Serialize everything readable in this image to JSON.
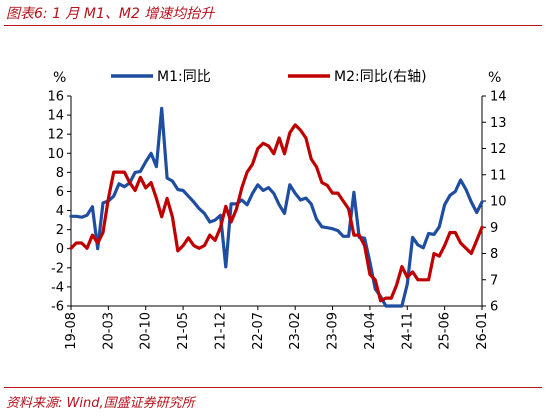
{
  "header": {
    "title": "图表6:  1 月 M1、M2 增速均抬升"
  },
  "footer": {
    "source": "资料来源:  Wind,国盛证券研究所"
  },
  "colors": {
    "m1": "#1f4ea1",
    "m2": "#c00000",
    "axis": "#000000",
    "header": "#b5121b"
  },
  "chart_data": {
    "type": "line",
    "title": "",
    "x_categories": [
      "19-08",
      "20-03",
      "20-10",
      "21-05",
      "21-12",
      "22-07",
      "23-02",
      "23-09",
      "24-04",
      "24-11",
      "25-06",
      "26-01"
    ],
    "x_range": [
      "19-08",
      "26-01"
    ],
    "y_left": {
      "unit_label": "%",
      "range": [
        -6,
        16
      ],
      "ticks": [
        "16",
        "14",
        "12",
        "10",
        "8",
        "6",
        "4",
        "2",
        "0",
        "-2",
        "-4",
        "-6"
      ]
    },
    "y_right": {
      "unit_label": "%",
      "range": [
        6,
        14
      ],
      "ticks": [
        "14",
        "13",
        "12",
        "11",
        "10",
        "9",
        "8",
        "7",
        "6"
      ]
    },
    "grid": false,
    "legend_position": "top",
    "series": [
      {
        "name": "M1:同比",
        "axis": "left",
        "color": "#1f4ea1",
        "points": [
          [
            "19-08",
            3.4
          ],
          [
            "19-09",
            3.4
          ],
          [
            "19-10",
            3.3
          ],
          [
            "19-11",
            3.5
          ],
          [
            "19-12",
            4.4
          ],
          [
            "20-01",
            0.0
          ],
          [
            "20-02",
            4.8
          ],
          [
            "20-03",
            5.0
          ],
          [
            "20-04",
            5.5
          ],
          [
            "20-05",
            6.8
          ],
          [
            "20-06",
            6.5
          ],
          [
            "20-07",
            6.9
          ],
          [
            "20-08",
            8.0
          ],
          [
            "20-09",
            8.1
          ],
          [
            "20-10",
            9.1
          ],
          [
            "20-11",
            10.0
          ],
          [
            "20-12",
            8.6
          ],
          [
            "21-01",
            14.7
          ],
          [
            "21-02",
            7.4
          ],
          [
            "21-03",
            7.1
          ],
          [
            "21-04",
            6.2
          ],
          [
            "21-05",
            6.1
          ],
          [
            "21-06",
            5.5
          ],
          [
            "21-07",
            4.9
          ],
          [
            "21-08",
            4.2
          ],
          [
            "21-09",
            3.7
          ],
          [
            "21-10",
            2.8
          ],
          [
            "21-11",
            3.0
          ],
          [
            "21-12",
            3.5
          ],
          [
            "22-01",
            -1.9
          ],
          [
            "22-02",
            4.7
          ],
          [
            "22-03",
            4.7
          ],
          [
            "22-04",
            5.1
          ],
          [
            "22-05",
            4.6
          ],
          [
            "22-06",
            5.8
          ],
          [
            "22-07",
            6.7
          ],
          [
            "22-08",
            6.1
          ],
          [
            "22-09",
            6.4
          ],
          [
            "22-10",
            5.8
          ],
          [
            "22-11",
            4.6
          ],
          [
            "22-12",
            3.7
          ],
          [
            "23-01",
            6.7
          ],
          [
            "23-02",
            5.8
          ],
          [
            "23-03",
            5.1
          ],
          [
            "23-04",
            5.3
          ],
          [
            "23-05",
            4.7
          ],
          [
            "23-06",
            3.1
          ],
          [
            "23-07",
            2.3
          ],
          [
            "23-08",
            2.2
          ],
          [
            "23-09",
            2.1
          ],
          [
            "23-10",
            1.9
          ],
          [
            "23-11",
            1.3
          ],
          [
            "23-12",
            1.3
          ],
          [
            "24-01",
            5.9
          ],
          [
            "24-02",
            1.2
          ],
          [
            "24-03",
            1.1
          ],
          [
            "24-04",
            -1.4
          ],
          [
            "24-05",
            -4.2
          ],
          [
            "24-06",
            -5.0
          ],
          [
            "24-07",
            -6.6
          ],
          [
            "24-08",
            -7.3
          ],
          [
            "24-09",
            -7.4
          ],
          [
            "24-10",
            -6.1
          ],
          [
            "24-11",
            -3.7
          ],
          [
            "24-12",
            1.2
          ],
          [
            "25-01",
            0.4
          ],
          [
            "25-02",
            0.1
          ],
          [
            "25-03",
            1.6
          ],
          [
            "25-04",
            1.5
          ],
          [
            "25-05",
            2.3
          ],
          [
            "25-06",
            4.6
          ],
          [
            "25-07",
            5.6
          ],
          [
            "25-08",
            6.0
          ],
          [
            "25-09",
            7.2
          ],
          [
            "25-10",
            6.2
          ],
          [
            "25-11",
            4.9
          ],
          [
            "25-12",
            3.8
          ],
          [
            "26-01",
            4.9
          ]
        ]
      },
      {
        "name": "M2:同比(右轴)",
        "axis": "right",
        "color": "#c00000",
        "points": [
          [
            "19-08",
            8.2
          ],
          [
            "19-09",
            8.4
          ],
          [
            "19-10",
            8.4
          ],
          [
            "19-11",
            8.2
          ],
          [
            "19-12",
            8.7
          ],
          [
            "20-01",
            8.4
          ],
          [
            "20-02",
            8.8
          ],
          [
            "20-03",
            10.1
          ],
          [
            "20-04",
            11.1
          ],
          [
            "20-05",
            11.1
          ],
          [
            "20-06",
            11.1
          ],
          [
            "20-07",
            10.7
          ],
          [
            "20-08",
            10.4
          ],
          [
            "20-09",
            10.9
          ],
          [
            "20-10",
            10.5
          ],
          [
            "20-11",
            10.7
          ],
          [
            "20-12",
            10.1
          ],
          [
            "21-01",
            9.4
          ],
          [
            "21-02",
            10.1
          ],
          [
            "21-03",
            9.4
          ],
          [
            "21-04",
            8.1
          ],
          [
            "21-05",
            8.3
          ],
          [
            "21-06",
            8.6
          ],
          [
            "21-07",
            8.3
          ],
          [
            "21-08",
            8.2
          ],
          [
            "21-09",
            8.3
          ],
          [
            "21-10",
            8.7
          ],
          [
            "21-11",
            8.5
          ],
          [
            "21-12",
            9.0
          ],
          [
            "22-01",
            9.8
          ],
          [
            "22-02",
            9.2
          ],
          [
            "22-03",
            9.7
          ],
          [
            "22-04",
            10.5
          ],
          [
            "22-05",
            11.1
          ],
          [
            "22-06",
            11.4
          ],
          [
            "22-07",
            12.0
          ],
          [
            "22-08",
            12.2
          ],
          [
            "22-09",
            12.1
          ],
          [
            "22-10",
            11.8
          ],
          [
            "22-11",
            12.4
          ],
          [
            "22-12",
            11.8
          ],
          [
            "23-01",
            12.6
          ],
          [
            "23-02",
            12.9
          ],
          [
            "23-03",
            12.7
          ],
          [
            "23-04",
            12.4
          ],
          [
            "23-05",
            11.6
          ],
          [
            "23-06",
            11.3
          ],
          [
            "23-07",
            10.7
          ],
          [
            "23-08",
            10.6
          ],
          [
            "23-09",
            10.3
          ],
          [
            "23-10",
            10.3
          ],
          [
            "23-11",
            10.0
          ],
          [
            "23-12",
            9.7
          ],
          [
            "24-01",
            8.7
          ],
          [
            "24-02",
            8.7
          ],
          [
            "24-03",
            8.3
          ],
          [
            "24-04",
            7.2
          ],
          [
            "24-05",
            7.0
          ],
          [
            "24-06",
            6.2
          ],
          [
            "24-07",
            6.3
          ],
          [
            "24-08",
            6.3
          ],
          [
            "24-09",
            6.8
          ],
          [
            "24-10",
            7.5
          ],
          [
            "24-11",
            7.1
          ],
          [
            "24-12",
            7.3
          ],
          [
            "25-01",
            7.0
          ],
          [
            "25-02",
            7.0
          ],
          [
            "25-03",
            7.0
          ],
          [
            "25-04",
            8.0
          ],
          [
            "25-05",
            7.9
          ],
          [
            "25-06",
            8.3
          ],
          [
            "25-07",
            8.8
          ],
          [
            "25-08",
            8.8
          ],
          [
            "25-09",
            8.4
          ],
          [
            "25-10",
            8.2
          ],
          [
            "25-11",
            8.0
          ],
          [
            "25-12",
            8.5
          ],
          [
            "26-01",
            9.0
          ]
        ]
      }
    ]
  }
}
